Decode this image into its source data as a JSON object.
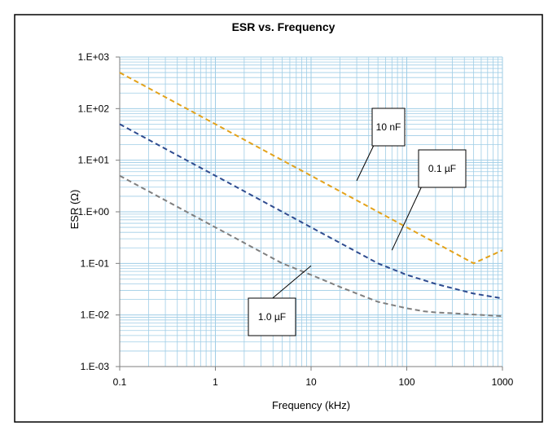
{
  "chart_data": {
    "type": "line",
    "title": "ESR vs. Frequency",
    "xlabel": "Frequency (kHz)",
    "ylabel": "ESR (Ω)",
    "x_scale": "log",
    "y_scale": "log",
    "xlim": [
      0.1,
      1000
    ],
    "ylim": [
      0.001,
      1000
    ],
    "x_ticks": [
      "0.1",
      "1",
      "10",
      "100",
      "1000"
    ],
    "y_ticks": [
      "1.E-03",
      "1.E-02",
      "1.E-01",
      "1.E+00",
      "1.E+01",
      "1.E+02",
      "1.E+03"
    ],
    "grid": true,
    "series": [
      {
        "name": "10 nF",
        "color": "#e3a21a",
        "x": [
          0.1,
          0.2,
          0.5,
          1,
          2,
          5,
          10,
          20,
          50,
          100,
          200,
          500,
          1000
        ],
        "y": [
          500,
          250,
          100,
          50,
          25,
          10,
          5,
          2.5,
          1.0,
          0.5,
          0.25,
          0.1,
          0.18
        ]
      },
      {
        "name": "0.1 µF",
        "color": "#2e4b8f",
        "x": [
          0.1,
          0.2,
          0.5,
          1,
          2,
          5,
          10,
          20,
          50,
          100,
          200,
          500,
          1000
        ],
        "y": [
          50,
          25,
          10,
          5,
          2.5,
          1.0,
          0.5,
          0.25,
          0.1,
          0.06,
          0.04,
          0.026,
          0.021
        ]
      },
      {
        "name": "1.0 µF",
        "color": "#7f7f7f",
        "x": [
          0.1,
          0.2,
          0.5,
          1,
          2,
          5,
          10,
          20,
          50,
          100,
          150,
          200,
          300,
          500,
          1000
        ],
        "y": [
          5,
          2.5,
          1.0,
          0.5,
          0.25,
          0.1,
          0.06,
          0.035,
          0.018,
          0.0135,
          0.0118,
          0.0112,
          0.0108,
          0.0102,
          0.0095
        ]
      }
    ],
    "annotations": [
      {
        "text": "10 nF",
        "x": 30,
        "y": 4
      },
      {
        "text": "0.1 µF",
        "x": 70,
        "y": 0.18
      },
      {
        "text": "1.0 µF",
        "x": 10,
        "y": 0.09
      }
    ]
  }
}
